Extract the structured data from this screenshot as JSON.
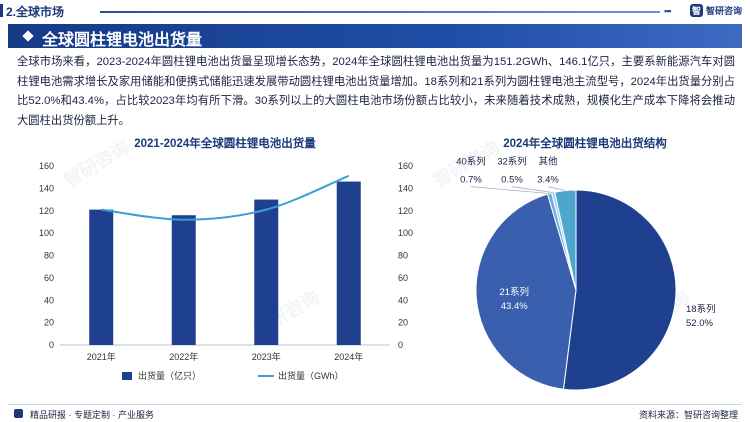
{
  "header": {
    "section_tag": "2.全球市场",
    "logo_text": "智研咨询"
  },
  "title": "全球圆柱锂电池出货量",
  "paragraph": "全球市场来看，2023-2024年圆柱锂电池出货量呈现增长态势，2024年全球圆柱锂电池出货量为151.2GWh、146.1亿只，主要系新能源汽车对圆柱锂电池需求增长及家用储能和便携式储能迅速发展带动圆柱锂电池出货量增加。18系列和21系列为圆柱锂电池主流型号，2024年出货量分别占比52.0%和43.4%，占比较2023年均有所下滑。30系列以上的大圆柱电池市场份额占比较小，未来随着技术成熟，规模化生产成本下降将会推动大圆柱出货份额上升。",
  "footer": {
    "left": "精品研报 · 专题定制 · 产业服务",
    "right": "资料来源：智研咨询整理"
  },
  "colors": {
    "bar": "#1f3f8f",
    "line": "#3a9fd6",
    "banner": "#1a449a",
    "pie_18": "#1f3f8f",
    "pie_21": "#3a5fae",
    "pie_40": "#6fb0dc",
    "pie_32": "#a9d2ee",
    "pie_other": "#4ea6cf"
  },
  "chart_data": [
    {
      "type": "bar",
      "title": "2021-2024年全球圆柱锂电池出货量",
      "categories": [
        "2021年",
        "2022年",
        "2023年",
        "2024年"
      ],
      "series": [
        {
          "name": "出货量（亿只）",
          "kind": "bar",
          "axis": "left",
          "values": [
            121,
            116,
            130,
            146.1
          ]
        },
        {
          "name": "出货量（GWh）",
          "kind": "line",
          "axis": "right",
          "values": [
            121,
            112,
            121,
            151.2
          ]
        }
      ],
      "ylim": [
        0,
        160
      ],
      "y2lim": [
        0,
        160
      ],
      "yticks": [
        0,
        20,
        40,
        60,
        80,
        100,
        120,
        140,
        160
      ],
      "y2ticks": [
        0,
        20,
        40,
        60,
        80,
        100,
        120,
        140,
        160
      ],
      "grid": false,
      "legend_position": "bottom"
    },
    {
      "type": "pie",
      "title": "2024年全球圆柱锂电池出货结构",
      "slices": [
        {
          "label": "18系列",
          "value": 52.0,
          "display": "52.0%",
          "color_key": "pie_18"
        },
        {
          "label": "21系列",
          "value": 43.4,
          "display": "43.4%",
          "color_key": "pie_21"
        },
        {
          "label": "40系列",
          "value": 0.7,
          "display": "0.7%",
          "color_key": "pie_40"
        },
        {
          "label": "32系列",
          "value": 0.5,
          "display": "0.5%",
          "color_key": "pie_32"
        },
        {
          "label": "其他",
          "value": 3.4,
          "display": "3.4%",
          "color_key": "pie_other"
        }
      ]
    }
  ]
}
